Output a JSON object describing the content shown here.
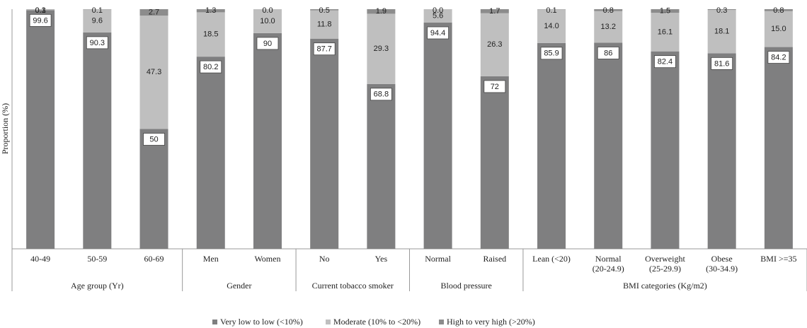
{
  "chart_data": {
    "type": "stacked-bar",
    "y_label": "Proportion (%)",
    "groups": [
      {
        "name": "Age group (Yr)",
        "categories": [
          "40-49",
          "50-59",
          "60-69"
        ]
      },
      {
        "name": "Gender",
        "categories": [
          "Men",
          "Women"
        ]
      },
      {
        "name": "Current tobacco smoker",
        "categories": [
          "No",
          "Yes"
        ]
      },
      {
        "name": "Blood pressure",
        "categories": [
          "Normal",
          "Raised"
        ]
      },
      {
        "name": "BMI categories (Kg/m2)",
        "categories": [
          "Lean (<20)",
          "Normal (20-24.9)",
          "Overweight (25-29.9)",
          "Obese (30-34.9)",
          "BMI >=35"
        ]
      }
    ],
    "series": [
      {
        "name": "Very low to low (<10%)",
        "color": "#7f7f80",
        "values": [
          99.6,
          90.3,
          50,
          80.2,
          90,
          87.7,
          68.8,
          94.4,
          72,
          85.9,
          86,
          82.4,
          81.6,
          84.2
        ]
      },
      {
        "name": "Moderate (10% to <20%)",
        "color": "#bfbfbf",
        "values": [
          0.3,
          9.6,
          47.3,
          18.5,
          10.0,
          11.8,
          29.3,
          5.6,
          26.3,
          14.0,
          13.2,
          16.1,
          18.1,
          15.0
        ],
        "value_labels": [
          "0.3",
          "9.6",
          "47.3",
          "18.5",
          "10.0",
          "11.8",
          "29.3",
          "5.6",
          "26.3",
          "14.0",
          "13.2",
          "16.1",
          "18.1",
          "15.0"
        ]
      },
      {
        "name": "High to very high (>20%)",
        "color": "#8c8c8c",
        "values": [
          0.1,
          0.1,
          2.7,
          1.3,
          0.0,
          0.5,
          1.9,
          0.0,
          1.7,
          0.1,
          0.8,
          1.5,
          0.3,
          0.8
        ],
        "value_labels": [
          "0.1",
          "0.1",
          "2.7",
          "1.3",
          "0.0",
          "0.5",
          "1.9",
          "0.0",
          "1.7",
          "0.1",
          "0.8",
          "1.5",
          "0.3",
          "0.8"
        ]
      }
    ],
    "ylim": [
      0,
      100
    ]
  }
}
